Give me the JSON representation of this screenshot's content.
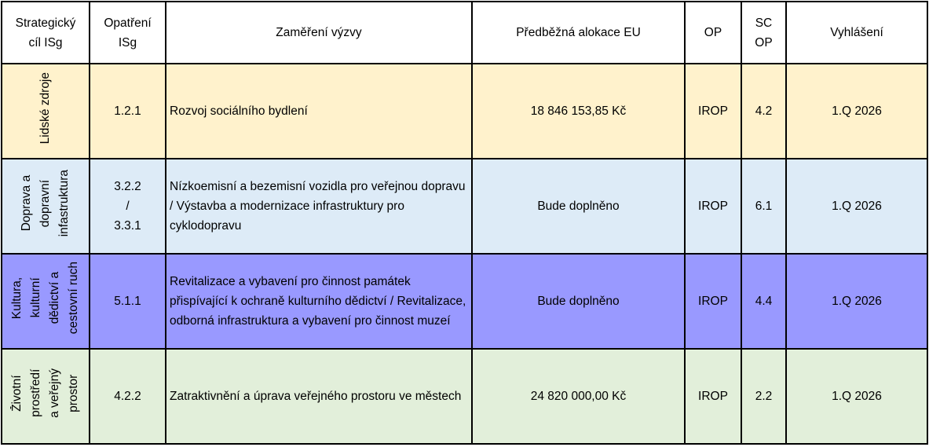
{
  "headers": [
    "Strategický\ncíl ISg",
    "Opatření\nISg",
    "Zaměření výzvy",
    "Předběžná alokace EU",
    "OP",
    "SC OP",
    "Vyhlášení"
  ],
  "colors": {
    "row1": "#FFF2CC",
    "row2": "#DDEBF7",
    "row3": "#9999FF",
    "row4": "#E2EFDA"
  },
  "rows": [
    {
      "cil": "Lidské zdroje",
      "opatreni": "1.2.1",
      "zamereni": "Rozvoj sociálního bydlení",
      "alokace": "18 846 153,85 Kč",
      "op": "IROP",
      "sc": "4.2",
      "vyhlaseni": "1.Q 2026"
    },
    {
      "cil": "Doprava a\ndopravní\ninfastruktura",
      "opatreni": "3.2.2\n/\n3.3.1",
      "zamereni": "Nízkoemisní a bezemisní vozidla pro veřejnou dopravu / Výstavba a modernizace infrastruktury pro cyklodopravu",
      "alokace": "Bude doplněno",
      "op": "IROP",
      "sc": "6.1",
      "vyhlaseni": "1.Q 2026"
    },
    {
      "cil": "Kultura,\nkulturní\ndědictví a\ncestovní ruch",
      "opatreni": "5.1.1",
      "zamereni": "Revitalizace a vybavení pro činnost památek přispívající k ochraně kulturního dědictví / Revitalizace, odborná infrastruktura a vybavení pro činnost muzeí",
      "alokace": "Bude doplněno",
      "op": "IROP",
      "sc": "4.4",
      "vyhlaseni": "1.Q 2026"
    },
    {
      "cil": "Životní\nprostředí\na veřejný\nprostor",
      "opatreni": "4.2.2",
      "zamereni": "Zatraktivnění a úprava veřejného prostoru ve městech",
      "alokace": "24 820 000,00 Kč",
      "op": "IROP",
      "sc": "2.2",
      "vyhlaseni": "1.Q 2026"
    }
  ]
}
